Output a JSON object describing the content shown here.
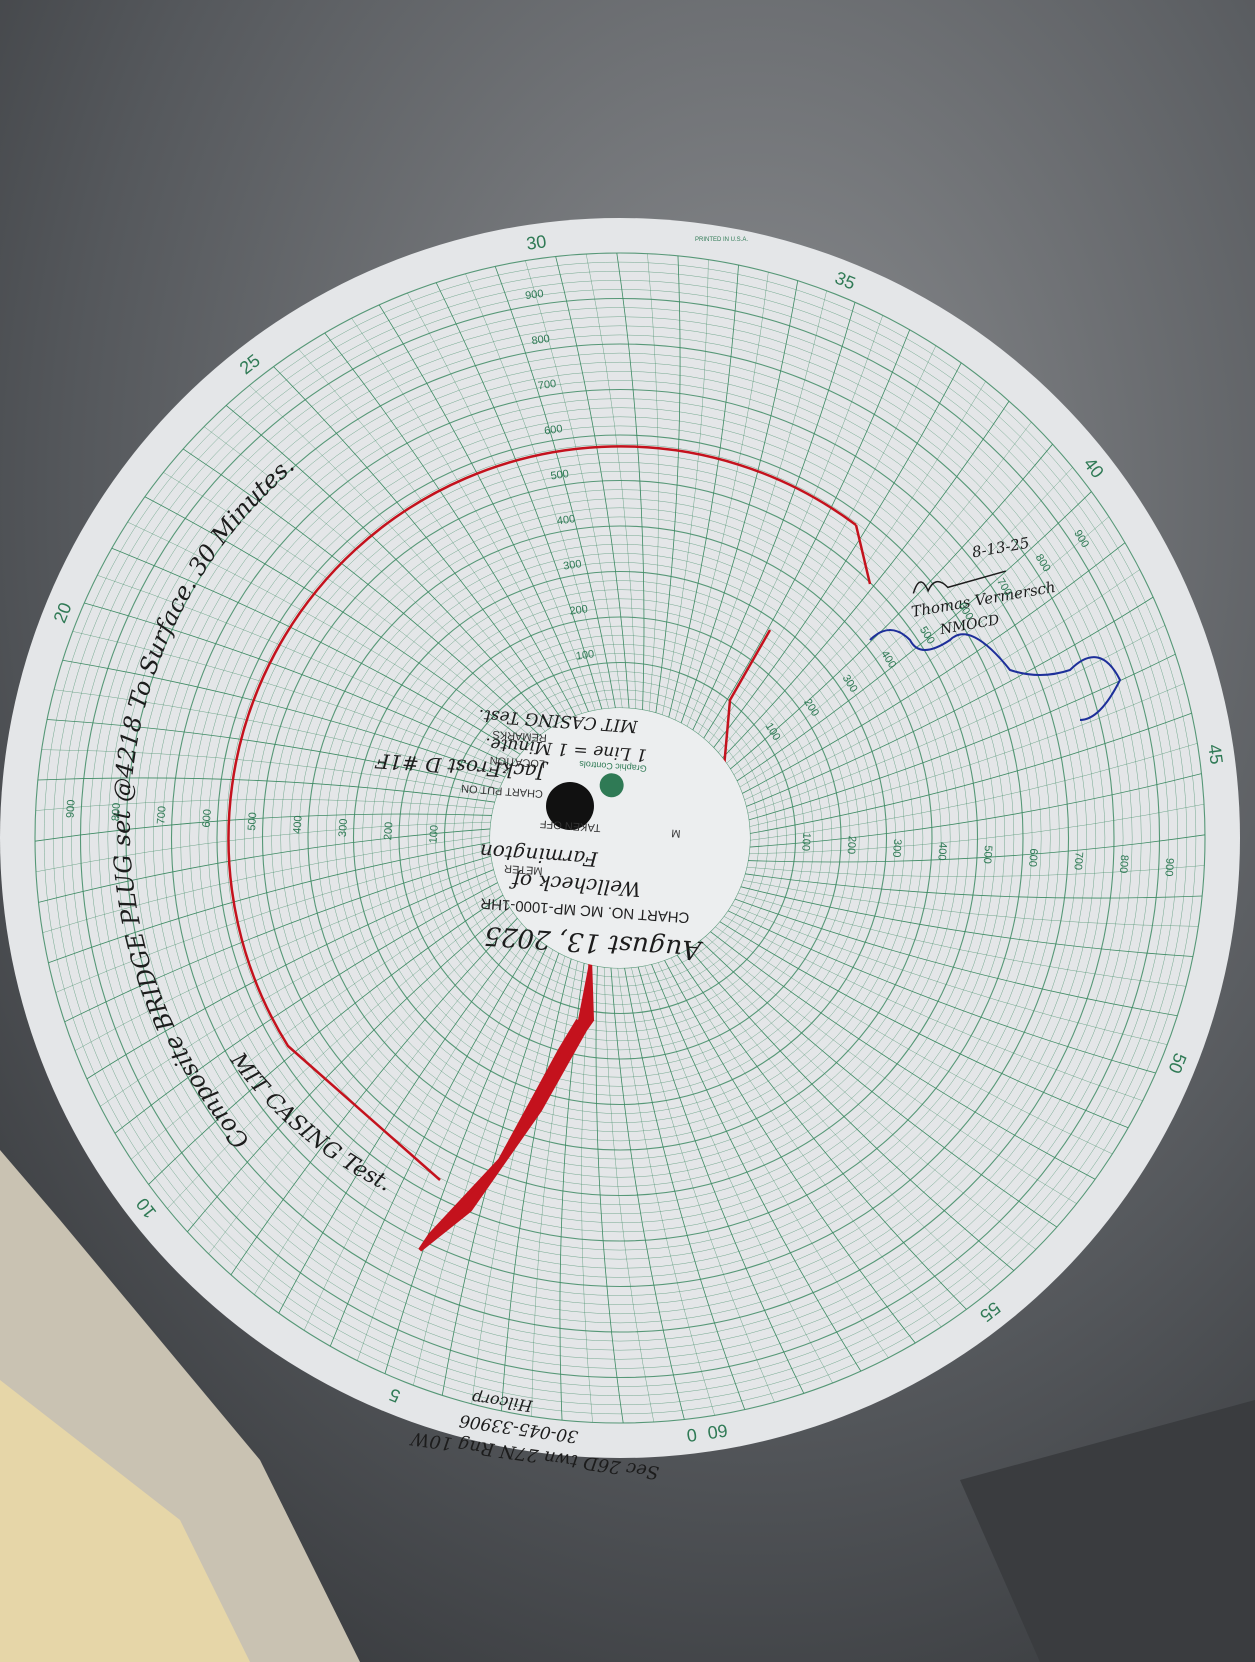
{
  "chart_disc": {
    "printed_in": "PRINTED IN U.S.A.",
    "minute_labels": [
      0,
      5,
      10,
      20,
      25,
      30,
      35,
      40,
      45,
      50,
      55,
      60
    ],
    "pressure_scale": [
      100,
      200,
      300,
      400,
      500,
      600,
      700,
      800,
      900
    ],
    "brand": "Graphic Controls",
    "fields": {
      "chart_no": "CHART NO. MC MP-1000-1HR",
      "meter": "METER",
      "taken_off": "TAKEN OFF",
      "chart_put_on": "CHART PUT ON",
      "location": "LOCATION",
      "remarks": "REMARKS",
      "m": "M"
    }
  },
  "handwriting": {
    "arc_note": "Composite BRIDGE PLUG set @4218 To Surface. 30 Minutes.",
    "arc_note_2": "MIT CASING Test.",
    "date": "August 13, 2025",
    "meter": "Farmington",
    "meter_of": "Wellcheck of",
    "location": "JackFrost D #1F",
    "remarks_1": "1 Line = 1 Minute.",
    "remarks_2": "MIT CASING Test.",
    "witness_date": "8-13-25",
    "witness_name": "Thomas Vermersch",
    "witness_org": "NMOCD",
    "operator": "Hilcorp",
    "api": "30-045-33906",
    "legal": "Sec 26D twn 27N Rng 10W"
  }
}
